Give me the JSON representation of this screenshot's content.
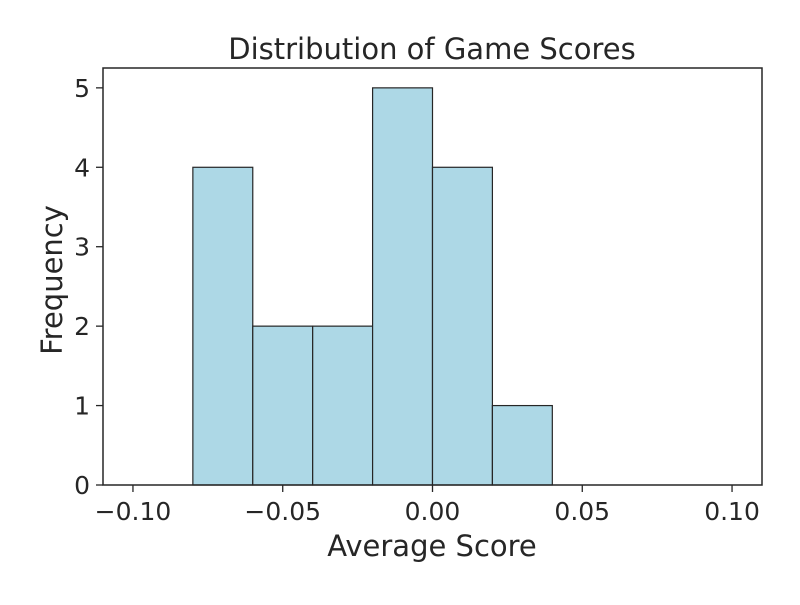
{
  "chart_data": {
    "type": "bar",
    "title": "Distribution of Game Scores",
    "xlabel": "Average Score",
    "ylabel": "Frequency",
    "bins": [
      {
        "start": -0.08,
        "end": -0.06,
        "count": 4
      },
      {
        "start": -0.06,
        "end": -0.04,
        "count": 2
      },
      {
        "start": -0.04,
        "end": -0.02,
        "count": 2
      },
      {
        "start": -0.02,
        "end": 0.0,
        "count": 5
      },
      {
        "start": 0.0,
        "end": 0.02,
        "count": 4
      },
      {
        "start": 0.02,
        "end": 0.04,
        "count": 1
      }
    ],
    "xlim": [
      -0.11,
      0.11
    ],
    "ylim": [
      0,
      5.25
    ],
    "xticks": [
      -0.1,
      -0.05,
      0.0,
      0.05,
      0.1
    ],
    "xtick_labels": [
      "−0.10",
      "−0.05",
      "0.00",
      "0.05",
      "0.10"
    ],
    "yticks": [
      0,
      1,
      2,
      3,
      4,
      5
    ],
    "ytick_labels": [
      "0",
      "1",
      "2",
      "3",
      "4",
      "5"
    ],
    "grid": false,
    "colors": {
      "bar_fill": "#add8e6",
      "bar_edge": "#262626",
      "axis": "#262626"
    }
  }
}
